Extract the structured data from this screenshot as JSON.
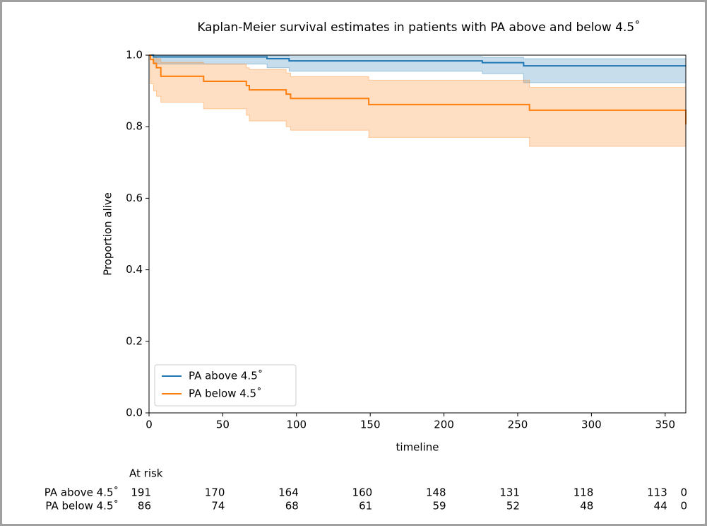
{
  "chart_data": {
    "type": "step",
    "title": "Kaplan-Meier survival estimates in patients with PA above and below 4.5˚",
    "x_label": "timeline",
    "y_label": "Proportion alive",
    "xlim": [
      0,
      364
    ],
    "ylim": [
      0,
      1
    ],
    "xticks": [
      0,
      50,
      100,
      150,
      200,
      250,
      300,
      350
    ],
    "yticks": [
      {
        "value": 0,
        "label": "0.0"
      },
      {
        "value": 0.2,
        "label": "0.2"
      },
      {
        "value": 0.4,
        "label": "0.4"
      },
      {
        "value": 0.6,
        "label": "0.6"
      },
      {
        "value": 0.8,
        "label": "0.8"
      },
      {
        "value": 1,
        "label": "1.0"
      }
    ],
    "legend": "lower left",
    "series": [
      {
        "name": "PA above 4.5˚",
        "color": "#1f77b4",
        "x": [
          0,
          3,
          80,
          95,
          226,
          254,
          364
        ],
        "values": [
          1.0,
          0.995,
          0.99,
          0.984,
          0.979,
          0.97,
          0.97
        ],
        "lower": [
          1.0,
          0.975,
          0.965,
          0.955,
          0.948,
          0.923,
          0.923
        ],
        "upper": [
          1.0,
          0.999,
          0.998,
          0.996,
          0.994,
          0.99,
          0.99
        ]
      },
      {
        "name": "PA below 4.5˚",
        "color": "#ff7f0e",
        "x": [
          0,
          1,
          3,
          5,
          8,
          37,
          66,
          68,
          93,
          96,
          149,
          258,
          364
        ],
        "values": [
          1.0,
          0.988,
          0.977,
          0.965,
          0.941,
          0.927,
          0.915,
          0.903,
          0.891,
          0.879,
          0.862,
          0.846,
          0.806
        ],
        "lower": [
          1.0,
          0.92,
          0.9,
          0.885,
          0.868,
          0.85,
          0.832,
          0.816,
          0.8,
          0.79,
          0.77,
          0.745,
          0.745
        ],
        "upper": [
          1.0,
          0.998,
          0.995,
          0.99,
          0.98,
          0.975,
          0.965,
          0.96,
          0.95,
          0.94,
          0.93,
          0.91,
          0.91
        ]
      }
    ],
    "at_risk": {
      "title": "At risk",
      "rows": [
        {
          "label": "PA above 4.5˚",
          "values": [
            191,
            170,
            164,
            160,
            148,
            131,
            118,
            113,
            0
          ]
        },
        {
          "label": "PA below 4.5˚",
          "values": [
            86,
            74,
            68,
            61,
            59,
            52,
            48,
            44,
            0
          ]
        }
      ]
    }
  }
}
